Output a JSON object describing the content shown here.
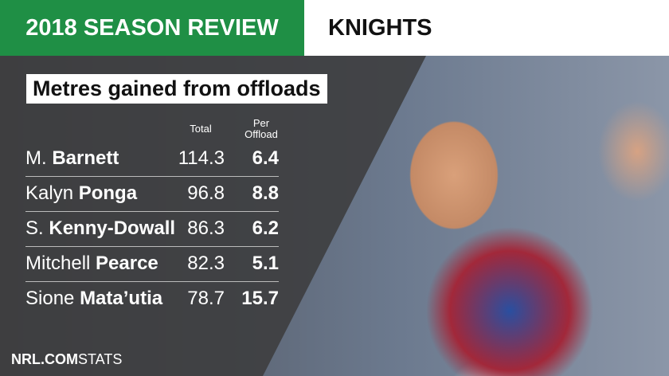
{
  "header": {
    "badge": "2018 SEASON REVIEW",
    "team": "KNIGHTS"
  },
  "table": {
    "title": "Metres gained from offloads",
    "columns": [
      "Total",
      "Per Offload"
    ],
    "rows": [
      {
        "first": "M.",
        "last": "Barnett",
        "total": "114.3",
        "per_offload": "6.4"
      },
      {
        "first": "Kalyn",
        "last": "Ponga",
        "total": "96.8",
        "per_offload": "8.8"
      },
      {
        "first": "S.",
        "last": "Kenny-Dowall",
        "total": "86.3",
        "per_offload": "6.2"
      },
      {
        "first": "Mitchell",
        "last": "Pearce",
        "total": "82.3",
        "per_offload": "5.1"
      },
      {
        "first": "Sione",
        "last": "Mata’utia",
        "total": "78.7",
        "per_offload": "15.7"
      }
    ]
  },
  "footer": {
    "brand": "NRL.COM",
    "label": "STATS"
  }
}
